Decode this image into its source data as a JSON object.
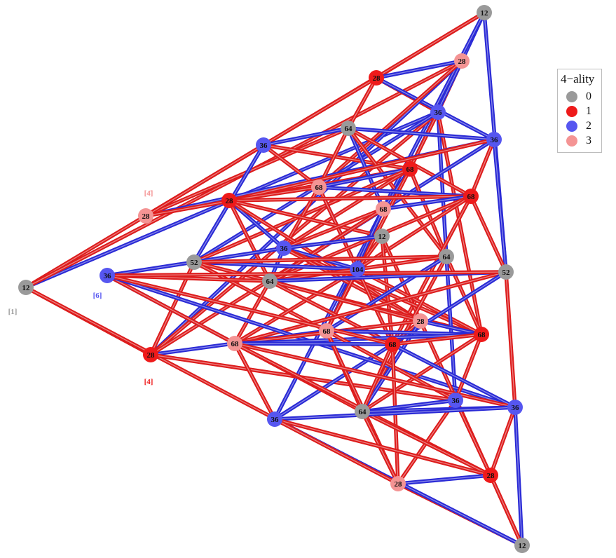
{
  "legend": {
    "title": "4−ality",
    "items": [
      {
        "label": "0",
        "color": "#9a9a9a"
      },
      {
        "label": "1",
        "color": "#ee1a1a"
      },
      {
        "label": "2",
        "color": "#5656f0"
      },
      {
        "label": "3",
        "color": "#f49494"
      }
    ]
  },
  "colors": {
    "class0": "#9a9a9a",
    "class1": "#ee1a1a",
    "class2": "#5656f0",
    "class3": "#f49494",
    "edge_red": "#dd1c1c",
    "edge_blue": "#2a2ad6"
  },
  "side_labels": [
    {
      "text": "[1]",
      "class": 0
    },
    {
      "text": "[6]",
      "class": 2
    },
    {
      "text": "[4]",
      "class": 1
    },
    {
      "text": "[4̄]",
      "class": 3
    }
  ],
  "nodes": [
    {
      "label": "12",
      "class": 0
    },
    {
      "label": "12",
      "class": 0
    },
    {
      "label": "12",
      "class": 0
    },
    {
      "label": "28",
      "class": 1
    },
    {
      "label": "28",
      "class": 3
    },
    {
      "label": "36",
      "class": 2
    },
    {
      "label": "36",
      "class": 2
    },
    {
      "label": "64",
      "class": 0
    },
    {
      "label": "36",
      "class": 2
    },
    {
      "label": "68",
      "class": 1
    },
    {
      "label": "68",
      "class": 3
    },
    {
      "label": "28",
      "class": 1
    },
    {
      "label": "28",
      "class": 3
    },
    {
      "label": "68",
      "class": 3
    },
    {
      "label": "68",
      "class": 1
    },
    {
      "label": "12",
      "class": 0
    },
    {
      "label": "36",
      "class": 2
    },
    {
      "label": "52",
      "class": 0
    },
    {
      "label": "104",
      "class": 2
    },
    {
      "label": "64",
      "class": 0
    },
    {
      "label": "64",
      "class": 0
    },
    {
      "label": "52",
      "class": 0
    },
    {
      "label": "36",
      "class": 2
    },
    {
      "label": "28",
      "class": 3
    },
    {
      "label": "68",
      "class": 1
    },
    {
      "label": "68",
      "class": 3
    },
    {
      "label": "68",
      "class": 1
    },
    {
      "label": "68",
      "class": 3
    },
    {
      "label": "28",
      "class": 1
    },
    {
      "label": "36",
      "class": 2
    },
    {
      "label": "64",
      "class": 0
    },
    {
      "label": "36",
      "class": 2
    },
    {
      "label": "36",
      "class": 2
    },
    {
      "label": "28",
      "class": 3
    },
    {
      "label": "28",
      "class": 1
    }
  ],
  "edges": [
    [
      0,
      3,
      "red"
    ],
    [
      0,
      5,
      "blue"
    ],
    [
      0,
      4,
      "red"
    ],
    [
      0,
      28,
      "red"
    ],
    [
      0,
      33,
      "red"
    ],
    [
      1,
      3,
      "red"
    ],
    [
      1,
      4,
      "blue"
    ],
    [
      1,
      12,
      "red"
    ],
    [
      1,
      21,
      "blue"
    ],
    [
      1,
      32,
      "blue"
    ],
    [
      2,
      34,
      "red"
    ],
    [
      2,
      33,
      "red"
    ],
    [
      2,
      31,
      "blue"
    ],
    [
      2,
      32,
      "blue"
    ],
    [
      3,
      4,
      "blue"
    ],
    [
      3,
      5,
      "red"
    ],
    [
      3,
      6,
      "red"
    ],
    [
      3,
      7,
      "red"
    ],
    [
      3,
      8,
      "blue"
    ],
    [
      4,
      5,
      "red"
    ],
    [
      4,
      28,
      "blue"
    ],
    [
      4,
      9,
      "blue"
    ],
    [
      4,
      10,
      "red"
    ],
    [
      5,
      28,
      "red"
    ],
    [
      5,
      17,
      "blue"
    ],
    [
      5,
      19,
      "blue"
    ],
    [
      5,
      9,
      "red"
    ],
    [
      5,
      24,
      "red"
    ],
    [
      28,
      25,
      "blue"
    ],
    [
      28,
      29,
      "red"
    ],
    [
      28,
      17,
      "red"
    ],
    [
      28,
      13,
      "red"
    ],
    [
      12,
      11,
      "red"
    ],
    [
      12,
      8,
      "blue"
    ],
    [
      12,
      7,
      "red"
    ],
    [
      12,
      6,
      "red"
    ],
    [
      12,
      9,
      "red"
    ],
    [
      6,
      7,
      "blue"
    ],
    [
      6,
      9,
      "red"
    ],
    [
      6,
      17,
      "blue"
    ],
    [
      6,
      10,
      "red"
    ],
    [
      7,
      8,
      "blue"
    ],
    [
      7,
      14,
      "red"
    ],
    [
      7,
      10,
      "red"
    ],
    [
      7,
      13,
      "blue"
    ],
    [
      7,
      19,
      "red"
    ],
    [
      8,
      21,
      "blue"
    ],
    [
      8,
      14,
      "red"
    ],
    [
      8,
      20,
      "blue"
    ],
    [
      8,
      11,
      "red"
    ],
    [
      9,
      10,
      "blue"
    ],
    [
      9,
      13,
      "blue"
    ],
    [
      9,
      16,
      "red"
    ],
    [
      9,
      19,
      "red"
    ],
    [
      9,
      17,
      "red"
    ],
    [
      9,
      25,
      "red"
    ],
    [
      10,
      11,
      "red"
    ],
    [
      10,
      14,
      "blue"
    ],
    [
      10,
      16,
      "red"
    ],
    [
      10,
      18,
      "blue"
    ],
    [
      10,
      26,
      "red"
    ],
    [
      11,
      14,
      "red"
    ],
    [
      11,
      15,
      "red"
    ],
    [
      11,
      16,
      "blue"
    ],
    [
      11,
      20,
      "red"
    ],
    [
      11,
      23,
      "red"
    ],
    [
      13,
      14,
      "blue"
    ],
    [
      13,
      16,
      "red"
    ],
    [
      13,
      18,
      "red"
    ],
    [
      13,
      20,
      "red"
    ],
    [
      13,
      25,
      "blue"
    ],
    [
      14,
      20,
      "red"
    ],
    [
      14,
      21,
      "red"
    ],
    [
      14,
      18,
      "red"
    ],
    [
      14,
      26,
      "red"
    ],
    [
      15,
      16,
      "blue"
    ],
    [
      15,
      18,
      "red"
    ],
    [
      15,
      23,
      "red"
    ],
    [
      15,
      26,
      "red"
    ],
    [
      16,
      18,
      "blue"
    ],
    [
      16,
      20,
      "blue"
    ],
    [
      16,
      24,
      "red"
    ],
    [
      16,
      23,
      "red"
    ],
    [
      16,
      22,
      "blue"
    ],
    [
      17,
      18,
      "blue"
    ],
    [
      17,
      19,
      "red"
    ],
    [
      17,
      24,
      "red"
    ],
    [
      17,
      25,
      "red"
    ],
    [
      18,
      19,
      "red"
    ],
    [
      18,
      20,
      "red"
    ],
    [
      18,
      24,
      "red"
    ],
    [
      18,
      25,
      "red"
    ],
    [
      18,
      26,
      "red"
    ],
    [
      18,
      27,
      "red"
    ],
    [
      19,
      24,
      "red"
    ],
    [
      19,
      25,
      "blue"
    ],
    [
      19,
      29,
      "blue"
    ],
    [
      19,
      30,
      "red"
    ],
    [
      20,
      21,
      "blue"
    ],
    [
      20,
      22,
      "red"
    ],
    [
      20,
      27,
      "red"
    ],
    [
      20,
      23,
      "red"
    ],
    [
      20,
      26,
      "red"
    ],
    [
      21,
      27,
      "red"
    ],
    [
      21,
      22,
      "red"
    ],
    [
      21,
      32,
      "blue"
    ],
    [
      21,
      31,
      "red"
    ],
    [
      22,
      27,
      "blue"
    ],
    [
      22,
      30,
      "red"
    ],
    [
      22,
      31,
      "blue"
    ],
    [
      23,
      24,
      "blue"
    ],
    [
      23,
      26,
      "red"
    ],
    [
      23,
      27,
      "red"
    ],
    [
      23,
      34,
      "red"
    ],
    [
      23,
      30,
      "blue"
    ],
    [
      24,
      25,
      "blue"
    ],
    [
      24,
      27,
      "blue"
    ],
    [
      24,
      29,
      "red"
    ],
    [
      24,
      30,
      "red"
    ],
    [
      24,
      26,
      "red"
    ],
    [
      25,
      29,
      "red"
    ],
    [
      25,
      30,
      "red"
    ],
    [
      25,
      33,
      "red"
    ],
    [
      26,
      27,
      "blue"
    ],
    [
      26,
      30,
      "red"
    ],
    [
      26,
      33,
      "red"
    ],
    [
      26,
      31,
      "blue"
    ],
    [
      26,
      22,
      "red"
    ],
    [
      27,
      31,
      "red"
    ],
    [
      27,
      34,
      "red"
    ],
    [
      27,
      32,
      "red"
    ],
    [
      29,
      30,
      "blue"
    ],
    [
      29,
      33,
      "red"
    ],
    [
      29,
      34,
      "red"
    ],
    [
      30,
      31,
      "blue"
    ],
    [
      30,
      33,
      "red"
    ],
    [
      30,
      34,
      "red"
    ],
    [
      31,
      32,
      "blue"
    ],
    [
      31,
      34,
      "red"
    ],
    [
      32,
      34,
      "red"
    ],
    [
      32,
      33,
      "red"
    ],
    [
      33,
      34,
      "blue"
    ],
    [
      34,
      2,
      "red"
    ]
  ]
}
